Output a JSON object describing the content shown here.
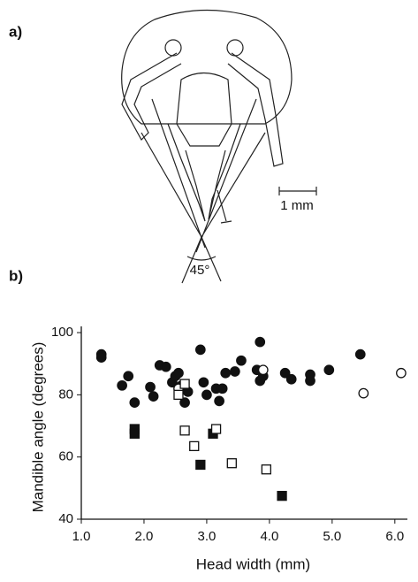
{
  "panel_a": {
    "label": "a)",
    "scale_label": "1 mm",
    "angle_label": "45°"
  },
  "panel_b": {
    "label": "b)"
  },
  "chart_data": {
    "type": "scatter",
    "x_label": "Head width (mm)",
    "y_label": "Mandible angle (degrees)",
    "xlim": [
      1.0,
      6.2
    ],
    "ylim": [
      40,
      102
    ],
    "xticks": [
      {
        "value": 1.0,
        "label": "1.0"
      },
      {
        "value": 2.0,
        "label": "2.0"
      },
      {
        "value": 3.0,
        "label": "3.0"
      },
      {
        "value": 4.0,
        "label": "4.0"
      },
      {
        "value": 5.0,
        "label": "5.0"
      },
      {
        "value": 6.0,
        "label": "6.0"
      }
    ],
    "yticks": [
      40,
      60,
      80,
      100
    ],
    "series": [
      {
        "marker": "circle",
        "filled": true,
        "color": "#111111",
        "x": [
          1.32,
          1.32,
          1.65,
          1.75,
          1.85,
          2.1,
          2.15,
          2.25,
          2.35,
          2.45,
          2.5,
          2.55,
          2.6,
          2.65,
          2.7,
          2.9,
          2.95,
          3.0,
          3.15,
          3.2,
          3.25,
          3.3,
          3.45,
          3.55,
          3.8,
          3.85,
          3.85,
          3.9,
          4.25,
          4.35,
          4.65,
          4.65,
          4.95,
          5.45
        ],
        "values": [
          93,
          92,
          83,
          86,
          77.5,
          82.5,
          79.5,
          89.5,
          89,
          84,
          86,
          87,
          83,
          77.5,
          81,
          94.5,
          84,
          80,
          82,
          78,
          82,
          87,
          87.5,
          91,
          88,
          97,
          84.5,
          86,
          87,
          85,
          86.5,
          84.5,
          88,
          93
        ]
      },
      {
        "marker": "circle",
        "filled": false,
        "color": "#111111",
        "x": [
          2.55,
          3.9,
          5.5,
          6.1
        ],
        "values": [
          82,
          88,
          80.5,
          87
        ]
      },
      {
        "marker": "square",
        "filled": true,
        "color": "#111111",
        "x": [
          1.85,
          1.85,
          2.9,
          3.1,
          4.2
        ],
        "values": [
          69,
          67.5,
          57.5,
          67.5,
          47.5
        ]
      },
      {
        "marker": "square",
        "filled": false,
        "color": "#111111",
        "x": [
          2.55,
          2.65,
          2.65,
          2.8,
          3.15,
          3.4,
          3.95
        ],
        "values": [
          80,
          83.5,
          68.5,
          63.5,
          69,
          58,
          56
        ]
      }
    ]
  }
}
